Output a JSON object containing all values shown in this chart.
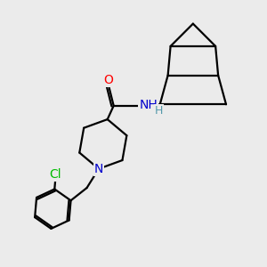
{
  "bg_color": "#ebebeb",
  "atom_colors": {
    "O": "#ff0000",
    "N": "#0000cc",
    "Cl": "#00bb00",
    "H": "#5599aa",
    "C": "#000000"
  },
  "bond_color": "#000000",
  "bond_width": 1.6,
  "fig_size": [
    3.0,
    3.0
  ],
  "dpi": 100
}
